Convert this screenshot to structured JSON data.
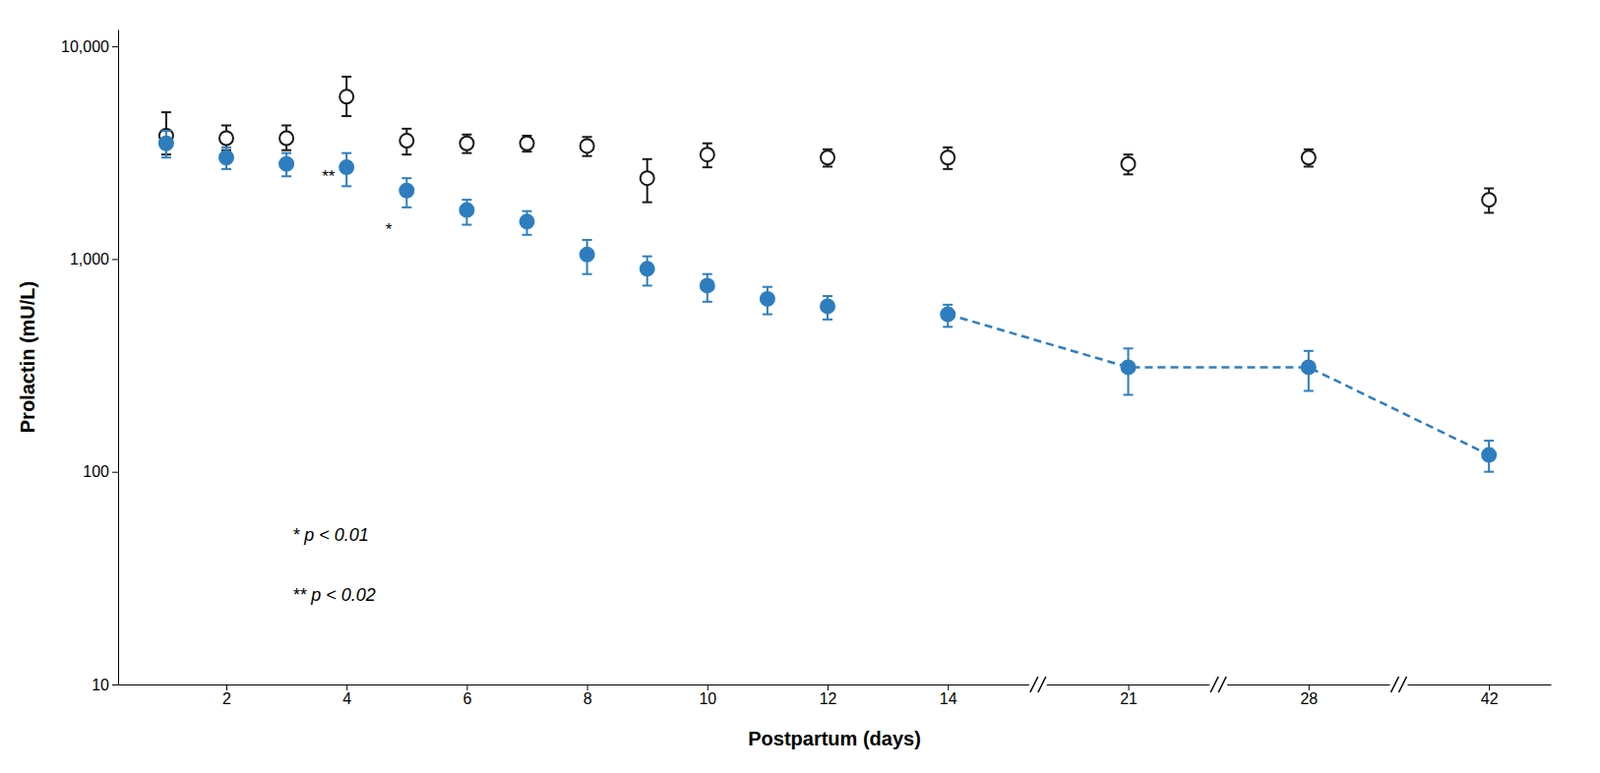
{
  "chart_data": {
    "type": "scatter",
    "xlabel": "Postpartum (days)",
    "ylabel": "Prolactin (mU/L)",
    "log": "y",
    "grid": false,
    "xlim": [
      0.2,
      46.8
    ],
    "xticks": [
      2,
      4,
      6,
      8,
      10,
      12,
      14,
      21,
      28,
      42
    ],
    "ylim": [
      10,
      12000
    ],
    "yticks": [
      10,
      100,
      {
        "value": 1000,
        "label": "1,000"
      },
      {
        "value": 10000,
        "label": "10,000"
      }
    ],
    "series": [
      {
        "color": "#1a1a1a",
        "marker": "circle-open",
        "line_style": "none",
        "x": [
          1,
          2,
          3,
          4,
          5,
          6,
          7,
          8,
          9,
          10,
          12,
          14,
          21,
          28,
          42
        ],
        "values": [
          3800,
          3700,
          3700,
          5800,
          3600,
          3500,
          3500,
          3400,
          2400,
          3100,
          3000,
          3000,
          2800,
          3000,
          1900
        ],
        "error_low": [
          700,
          450,
          450,
          1100,
          500,
          350,
          300,
          350,
          550,
          400,
          280,
          350,
          300,
          280,
          250
        ],
        "error_high": [
          1100,
          550,
          550,
          1400,
          500,
          350,
          300,
          350,
          550,
          400,
          280,
          350,
          300,
          280,
          250
        ]
      },
      {
        "color": "#2e7ebf",
        "marker": "circle",
        "line_style": "none",
        "x": [
          1,
          2,
          3,
          4,
          5,
          6,
          7,
          8,
          9,
          10,
          11,
          12
        ],
        "values": [
          3500,
          3000,
          2800,
          2700,
          2100,
          1700,
          1500,
          1050,
          900,
          750,
          650,
          600
        ],
        "error_low": [
          500,
          350,
          350,
          500,
          350,
          250,
          200,
          200,
          150,
          120,
          100,
          80
        ],
        "error_high": [
          500,
          350,
          350,
          450,
          300,
          200,
          180,
          180,
          130,
          100,
          90,
          70
        ]
      },
      {
        "color": "#2e7ebf",
        "marker": "circle",
        "line_style": "dashed",
        "x": [
          14,
          21,
          28,
          42
        ],
        "values": [
          550,
          310,
          310,
          120
        ],
        "error_low": [
          70,
          80,
          70,
          20
        ],
        "error_high": [
          60,
          70,
          60,
          20
        ]
      }
    ],
    "annotations": [
      {
        "text": "**",
        "x": 3.7,
        "y": 2300
      },
      {
        "text": "*",
        "x": 4.7,
        "y": 1300
      },
      {
        "text": "* p < 0.01",
        "x": 3.1,
        "y": 50
      },
      {
        "text": "** p < 0.02",
        "x": 3.1,
        "y": 26
      }
    ]
  }
}
